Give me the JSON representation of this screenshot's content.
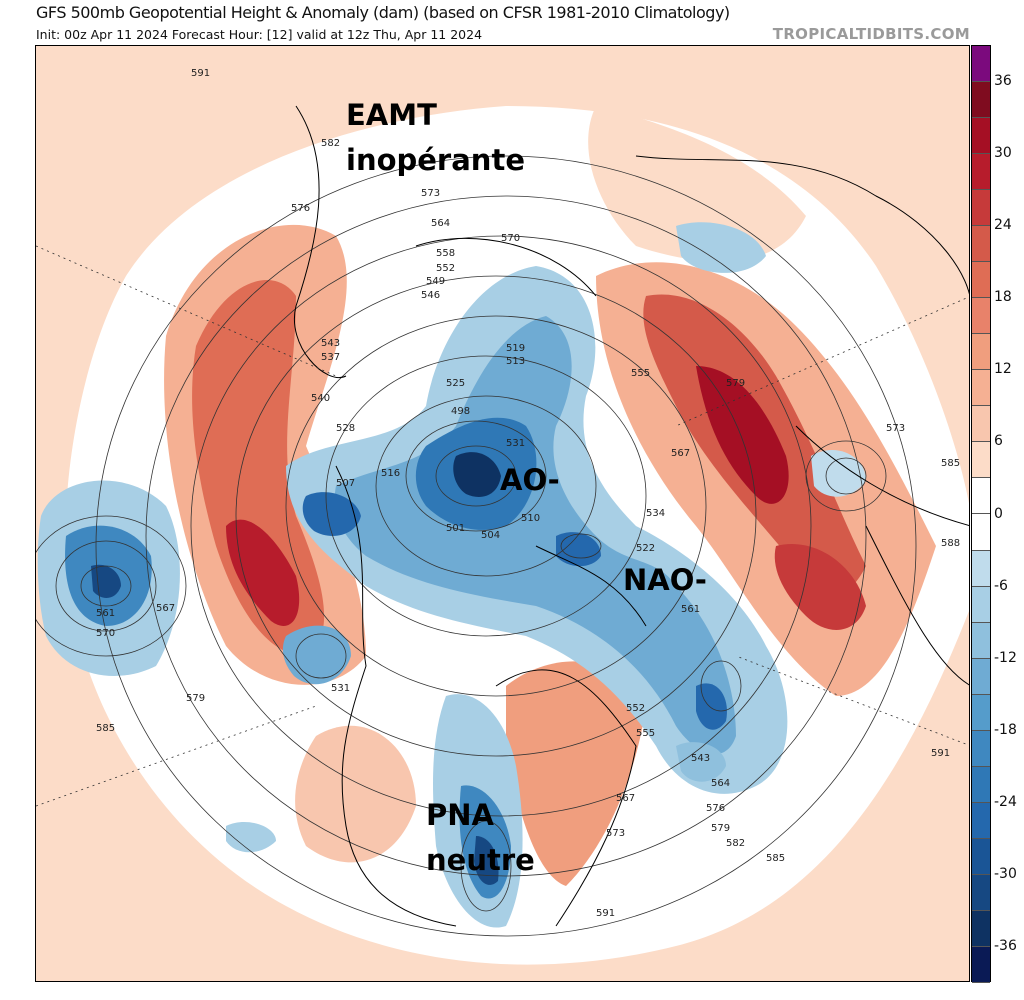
{
  "header": {
    "title": "GFS 500mb Geopotential Height & Anomaly (dam) (based on CFSR 1981-2010 Climatology)",
    "subtitle": "Init: 00z Apr 11 2024   Forecast Hour: [12]   valid at 12z Thu, Apr 11 2024",
    "brand": "TROPICALTIDBITS.COM"
  },
  "annotations": {
    "eamt_line1": "EAMT",
    "eamt_line2": "inopérante",
    "ao": "AO-",
    "nao": "NAO-",
    "pna_line1": "PNA",
    "pna_line2": "neutre"
  },
  "contour_labels": [
    "591",
    "582",
    "576",
    "573",
    "570",
    "564",
    "558",
    "552",
    "549",
    "546",
    "543",
    "537",
    "540",
    "531",
    "528",
    "525",
    "519",
    "513",
    "498",
    "501",
    "504",
    "507",
    "510",
    "516",
    "522",
    "534",
    "555",
    "561",
    "567",
    "573",
    "579",
    "585",
    "588",
    "561",
    "570",
    "567",
    "531",
    "543",
    "552",
    "555",
    "564",
    "567",
    "573",
    "576",
    "579",
    "582",
    "585",
    "591",
    "585",
    "591",
    "579"
  ],
  "colorbar": {
    "ticks": [
      "36",
      "30",
      "24",
      "18",
      "12",
      "6",
      "0",
      "-6",
      "-12",
      "-18",
      "-24",
      "-30",
      "-36"
    ],
    "colors": [
      "#7b0a7d",
      "#7f0c1f",
      "#a50f24",
      "#b71c2c",
      "#c63a3a",
      "#d45a4a",
      "#df6d55",
      "#e8826a",
      "#f09e7e",
      "#f5b093",
      "#f8c6ae",
      "#fcdcc8",
      "#ffffff",
      "#ffffff",
      "#c0dcec",
      "#a8cfe5",
      "#8fc0dd",
      "#6fabd3",
      "#559ccb",
      "#3f88c0",
      "#2f78b6",
      "#2468ad",
      "#1a5596",
      "#164882",
      "#0e3262",
      "#0a1a55"
    ]
  }
}
